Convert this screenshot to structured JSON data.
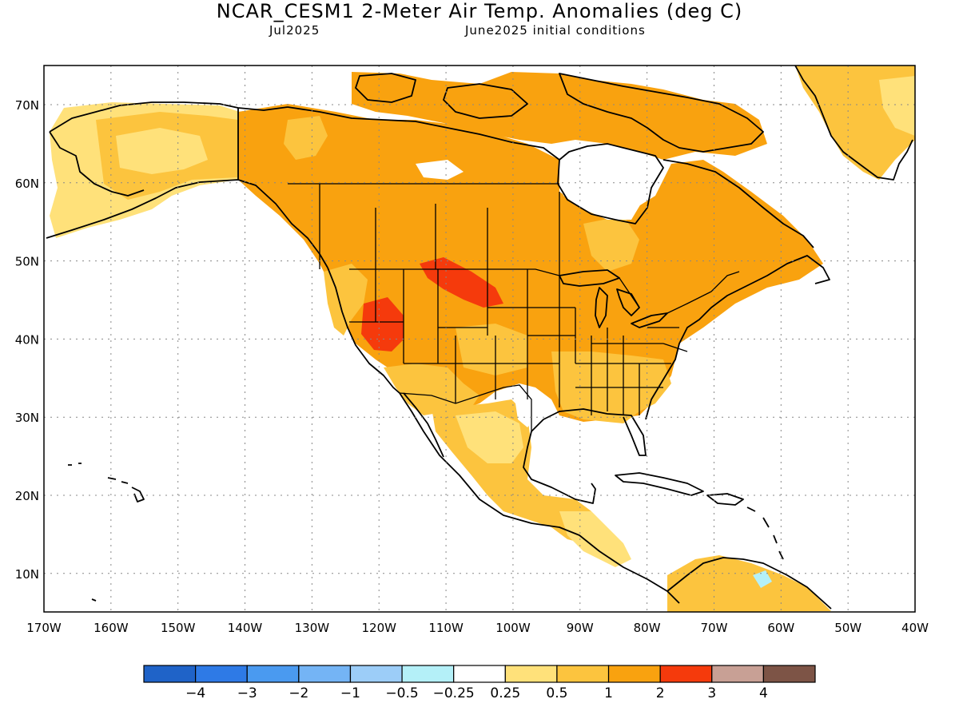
{
  "title": "NCAR_CESM1 2-Meter Air Temp. Anomalies (deg C)",
  "subtitle_left": "Jul2025",
  "subtitle_right": "June2025 initial conditions",
  "map": {
    "lat_labels": [
      "70N",
      "60N",
      "50N",
      "40N",
      "30N",
      "20N",
      "10N"
    ],
    "lon_labels": [
      "170W",
      "160W",
      "150W",
      "140W",
      "130W",
      "120W",
      "110W",
      "100W",
      "90W",
      "80W",
      "70W",
      "60W",
      "50W",
      "40W"
    ],
    "background": "#ffffff",
    "coastline_color": "#000000"
  },
  "legend": {
    "colors": [
      "#1f63c8",
      "#2e7ae6",
      "#4a9af0",
      "#74b4f5",
      "#9ccdf8",
      "#b4f0f8",
      "#ffffff",
      "#ffe17a",
      "#fcc43e",
      "#f9a20f",
      "#f53a0c",
      "#c8a095",
      "#7d5446"
    ],
    "labels": [
      "−4",
      "−3",
      "−2",
      "−1",
      "−0.5",
      "−0.25",
      "0.25",
      "0.5",
      "1",
      "2",
      "3",
      "4"
    ]
  }
}
